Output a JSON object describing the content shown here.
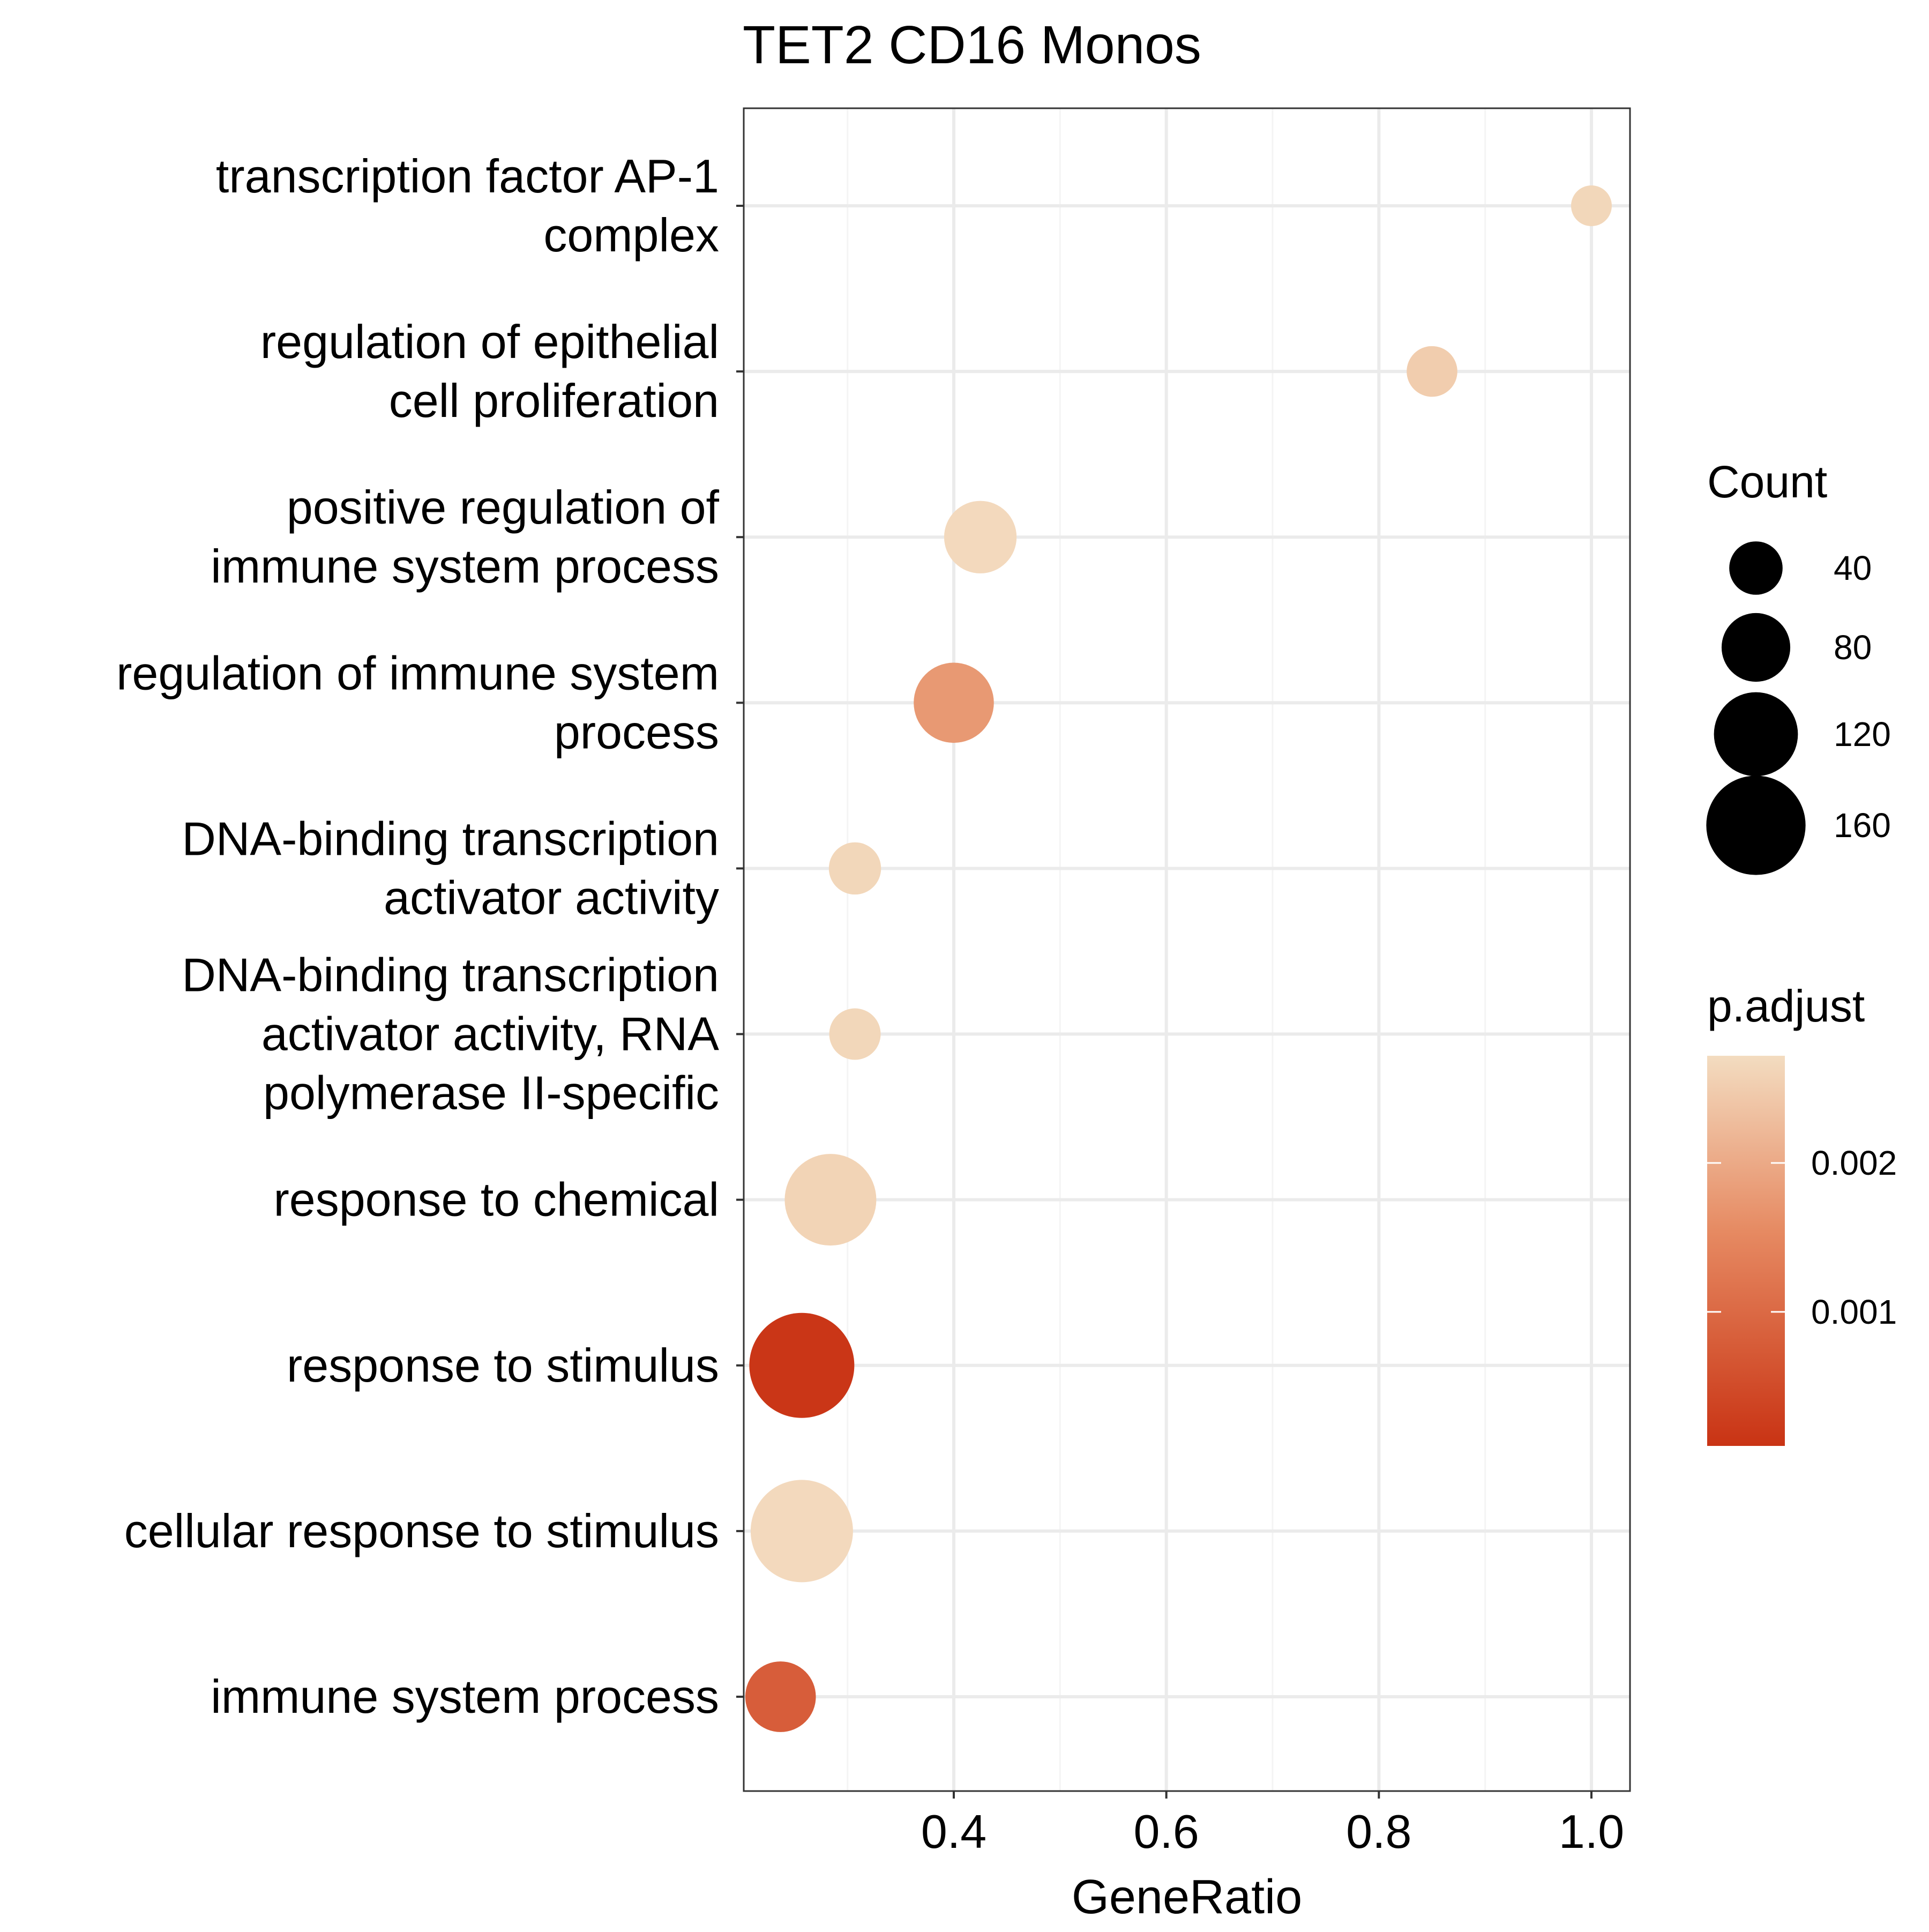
{
  "chart_data": {
    "type": "scatter",
    "title": "TET2 CD16 Monos",
    "xlabel": "GeneRatio",
    "ylabel": "",
    "xlim": [
      0.2,
      1.037
    ],
    "x_ticks": [
      {
        "value": 0.4,
        "label": "0.4"
      },
      {
        "value": 0.6,
        "label": "0.6"
      },
      {
        "value": 0.8,
        "label": "0.8"
      },
      {
        "value": 1.0,
        "label": "1.0"
      }
    ],
    "x_minor_ticks": [
      0.3,
      0.5,
      0.7,
      0.9
    ],
    "grid": true,
    "categories": [
      {
        "lines": [
          "transcription factor AP-1",
          "complex"
        ]
      },
      {
        "lines": [
          "regulation of epithelial",
          "cell proliferation"
        ]
      },
      {
        "lines": [
          "positive regulation of",
          "immune system process"
        ]
      },
      {
        "lines": [
          "regulation of immune system",
          "process"
        ]
      },
      {
        "lines": [
          "DNA-binding transcription",
          "activator activity"
        ]
      },
      {
        "lines": [
          "DNA-binding transcription",
          "activator activity, RNA",
          "polymerase II-specific"
        ]
      },
      {
        "lines": [
          "response to chemical"
        ]
      },
      {
        "lines": [
          "response to stimulus"
        ]
      },
      {
        "lines": [
          "cellular response to stimulus"
        ]
      },
      {
        "lines": [
          "immune system process"
        ]
      }
    ],
    "points": [
      {
        "x": 1.0,
        "count": 7,
        "p_adjust": 0.00265
      },
      {
        "x": 0.85,
        "count": 33,
        "p_adjust": 0.0025
      },
      {
        "x": 0.425,
        "count": 90,
        "p_adjust": 0.00268
      },
      {
        "x": 0.4,
        "count": 110,
        "p_adjust": 0.00175
      },
      {
        "x": 0.307,
        "count": 37,
        "p_adjust": 0.00265
      },
      {
        "x": 0.307,
        "count": 35,
        "p_adjust": 0.00265
      },
      {
        "x": 0.284,
        "count": 140,
        "p_adjust": 0.0026
      },
      {
        "x": 0.257,
        "count": 175,
        "p_adjust": 0.00015
      },
      {
        "x": 0.257,
        "count": 168,
        "p_adjust": 0.00268
      },
      {
        "x": 0.237,
        "count": 85,
        "p_adjust": 0.0008
      }
    ],
    "legend_count": {
      "title": "Count",
      "placement": "right",
      "entries": [
        {
          "value": 40,
          "label": "40"
        },
        {
          "value": 80,
          "label": "80"
        },
        {
          "value": 120,
          "label": "120"
        },
        {
          "value": 160,
          "label": "160"
        }
      ]
    },
    "legend_color": {
      "title": "p.adjust",
      "placement": "right",
      "range": [
        0.0001,
        0.00272
      ],
      "low_color": "#c93314",
      "mid_color": "#e68a62",
      "high_color": "#f3dcc0",
      "ticks": [
        {
          "value": 0.002,
          "label": "0.002"
        },
        {
          "value": 0.001,
          "label": "0.001"
        }
      ]
    },
    "colors": {
      "panel_border": "#333333",
      "grid_major": "#ebebeb",
      "grid_minor": "#f4f4f4",
      "legend_point": "#000000"
    }
  }
}
